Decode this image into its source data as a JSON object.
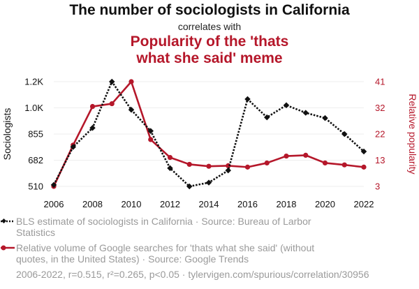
{
  "title": "The number of sociologists in California",
  "subtitle": "correlates with",
  "title2_line1": "Popularity of the 'thats",
  "title2_line2": "what she said' meme",
  "footer": "2006-2022, r=0.515, r²=0.265, p<0.05 · tylervigen.com/spurious/correlation/30956",
  "colors": {
    "series1": "#111111",
    "series2": "#b5172a",
    "grid": "#eeeeee",
    "legend_text": "#9a9a9a"
  },
  "chart_data": {
    "type": "line",
    "x": [
      2006,
      2007,
      2008,
      2009,
      2010,
      2011,
      2012,
      2013,
      2014,
      2015,
      2016,
      2017,
      2018,
      2019,
      2020,
      2021,
      2022
    ],
    "x_ticks": [
      "2006",
      "2008",
      "2010",
      "2012",
      "2014",
      "2016",
      "2018",
      "2020",
      "2022"
    ],
    "xlim": [
      2006,
      2022
    ],
    "ylabel": "Sociologists",
    "y2label": "Relative popularity",
    "ylim": [
      510,
      1200
    ],
    "y2lim": [
      3,
      41
    ],
    "y_ticks": [
      "1.2K",
      "1.0K",
      "855",
      "682",
      "510"
    ],
    "y2_ticks": [
      "41",
      "32",
      "22",
      "13",
      "3"
    ],
    "grid": true,
    "series": [
      {
        "name": "BLS estimate of sociologists in California · Source: Bureau of Larbor Statistics",
        "axis": "left",
        "style": "dotted",
        "marker": "diamond",
        "values": [
          520,
          770,
          895,
          1200,
          1015,
          875,
          630,
          510,
          535,
          615,
          1085,
          965,
          1045,
          995,
          960,
          855,
          740
        ]
      },
      {
        "name": "Relative volume of Google searches for 'thats what she said' (without quotes, in the United States) · Source: Google Trends",
        "axis": "right",
        "style": "solid",
        "marker": "circle",
        "values": [
          3,
          18,
          32,
          33,
          41,
          20,
          13.5,
          11,
          10.3,
          10.5,
          10,
          11.5,
          14,
          14.3,
          11.5,
          10.8,
          10
        ]
      }
    ]
  }
}
